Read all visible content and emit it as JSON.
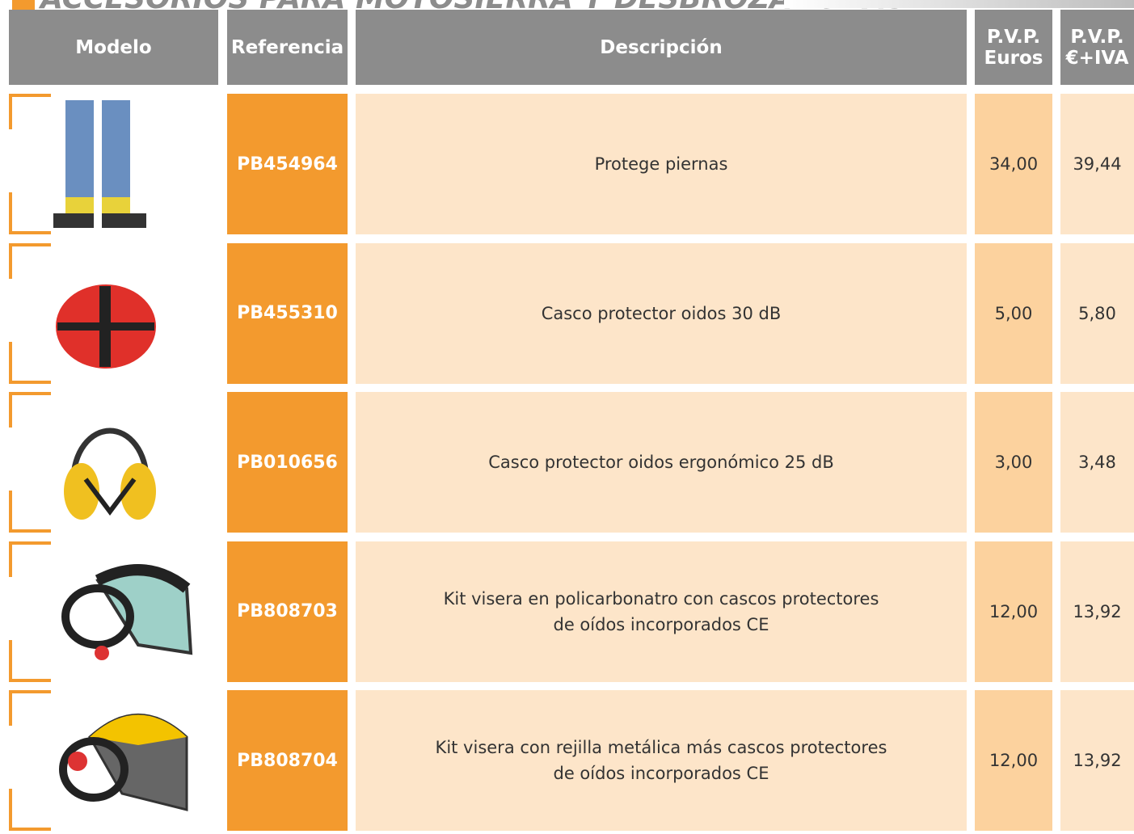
{
  "header": {
    "title": "ACCESORIOS PARA MOTOSIERRA Y DESBROZADORAS"
  },
  "table": {
    "columns": [
      "Modelo",
      "Referencia",
      "Descripción",
      [
        "P.V.P.",
        "Euros"
      ],
      [
        "P.V.P.",
        "€+IVA"
      ]
    ],
    "rows": [
      {
        "reference": "PB454964",
        "description": [
          "Protege piernas"
        ],
        "price": "34,00",
        "price_vat": "39,44"
      },
      {
        "reference": "PB455310",
        "description": [
          "Casco protector oidos 30 dB"
        ],
        "price": "5,00",
        "price_vat": "5,80"
      },
      {
        "reference": "PB010656",
        "description": [
          "Casco protector oidos ergonómico 25 dB"
        ],
        "price": "3,00",
        "price_vat": "3,48"
      },
      {
        "reference": "PB808703",
        "description": [
          "Kit visera en policarbonatro con cascos protectores",
          "de oídos incorporados CE"
        ],
        "price": "12,00",
        "price_vat": "13,92"
      },
      {
        "reference": "PB808704",
        "description": [
          "Kit visera con rejilla metálica más cascos protectores",
          "de oídos incorporados CE"
        ],
        "price": "12,00",
        "price_vat": "13,92"
      }
    ]
  }
}
